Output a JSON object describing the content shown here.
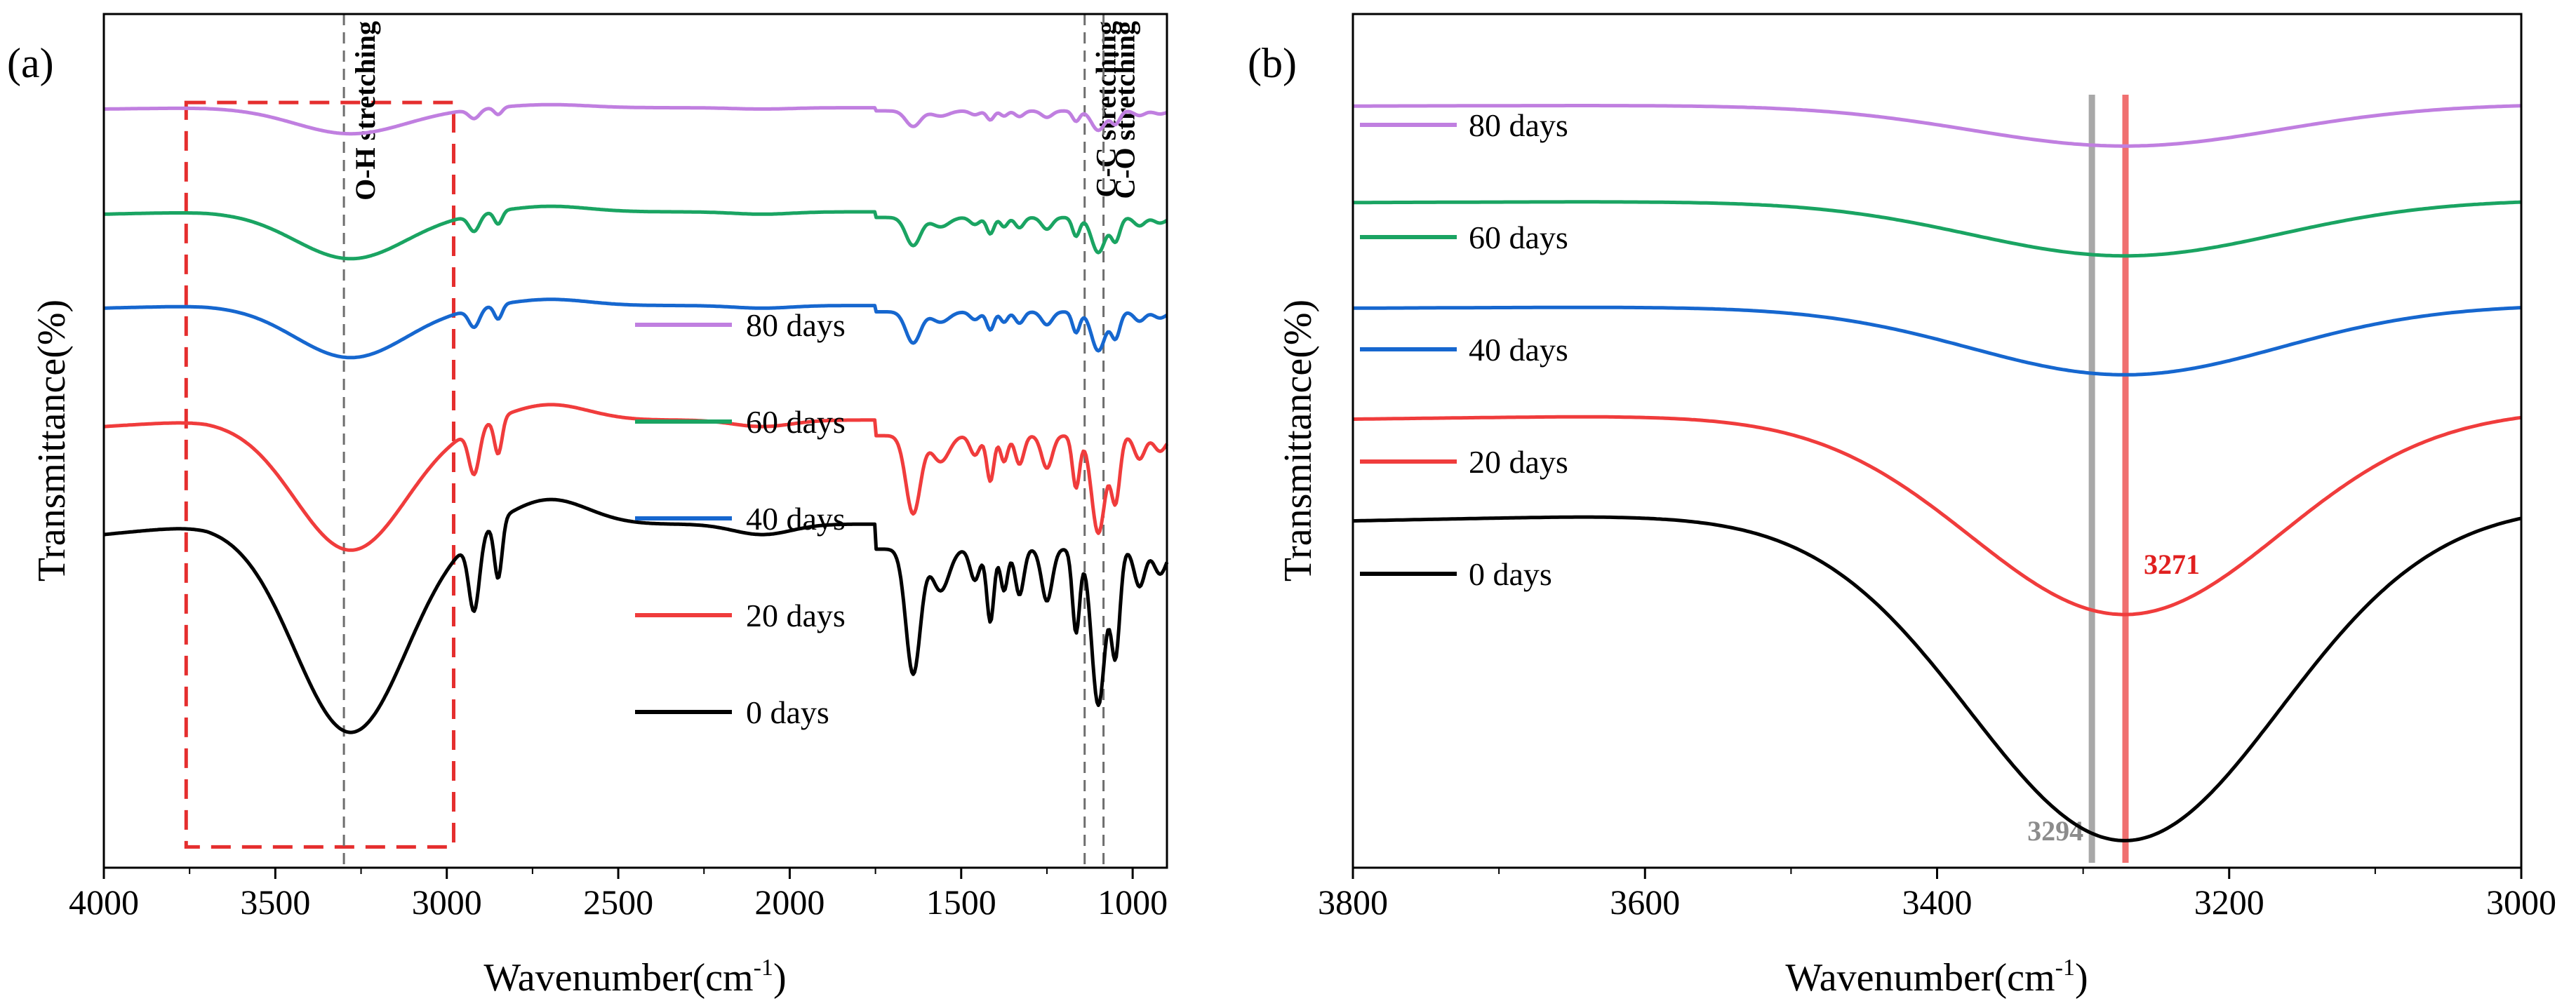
{
  "chart_data": [
    {
      "panel": "(a)",
      "type": "line",
      "xlabel": "Wavenumber(cm",
      "xlabel_sup": "-1",
      "xlabel_tail": ")",
      "ylabel": "Transmittance(%)",
      "xlim": [
        4000,
        900
      ],
      "xticks": [
        4000,
        3500,
        3000,
        2500,
        2000,
        1500,
        1000
      ],
      "xtick_labels": [
        "4000",
        "3500",
        "3000",
        "2500",
        "2000",
        "1500",
        "1000"
      ],
      "legend_placement": "center-right",
      "annotations": [
        {
          "label": "O-H stretching",
          "x": 3300
        },
        {
          "label": "C-C stretching",
          "x": 1140
        },
        {
          "label": "C-O stretching",
          "x": 1085
        }
      ],
      "highlight_box": {
        "x_from": 3760,
        "x_to": 2980,
        "style": "red dashed rectangle"
      },
      "series": [
        {
          "name": "80 days",
          "color": "#c07fe0",
          "offset": 4.0,
          "scale": 0.25
        },
        {
          "name": "60 days",
          "color": "#1aa462",
          "offset": 3.0,
          "scale": 0.45
        },
        {
          "name": "40 days",
          "color": "#1667cf",
          "offset": 2.1,
          "scale": 0.5
        },
        {
          "name": "20 days",
          "color": "#f03c3c",
          "offset": 1.0,
          "scale": 1.25
        },
        {
          "name": "0 days",
          "color": "#000000",
          "offset": 0.0,
          "scale": 2.0
        }
      ]
    },
    {
      "panel": "(b)",
      "type": "line",
      "xlabel": "Wavenumber(cm",
      "xlabel_sup": "-1",
      "xlabel_tail": ")",
      "ylabel": "Transmittance(%)",
      "xlim": [
        3800,
        3000
      ],
      "xticks": [
        3800,
        3600,
        3400,
        3200,
        3000
      ],
      "xtick_labels": [
        "3800",
        "3600",
        "3400",
        "3200",
        "3000"
      ],
      "legend_placement": "left",
      "reference_lines": [
        {
          "x": 3294,
          "label": "3294",
          "color": "#a8a8a8"
        },
        {
          "x": 3271,
          "label": "3271",
          "color": "#f07070"
        }
      ],
      "series": [
        {
          "name": "80 days",
          "color": "#c07fe0",
          "offset": 9.0,
          "scale": 0.45,
          "right_end": -0.2
        },
        {
          "name": "60 days",
          "color": "#1aa462",
          "offset": 7.95,
          "scale": 0.6,
          "right_end": -0.45
        },
        {
          "name": "40 days",
          "color": "#1667cf",
          "offset": 6.8,
          "scale": 0.75,
          "right_end": -0.3
        },
        {
          "name": "20 days",
          "color": "#f03c3c",
          "offset": 5.6,
          "scale": 2.2,
          "right_end": -0.8
        },
        {
          "name": "0 days",
          "color": "#000000",
          "offset": 4.5,
          "scale": 3.6,
          "right_end": -0.9
        }
      ]
    }
  ],
  "panel_a": {
    "label": "(a)",
    "ylabel": "Transmittance(%)",
    "xlabel": "Wavenumber(cm",
    "xlabel_sup": "-1",
    "xlabel_tail": ")",
    "annotations": [
      "O-H stretching",
      "C-C stretching",
      "C-O stretching"
    ],
    "legend": [
      "80 days",
      "60 days",
      "40 days",
      "20 days",
      "0 days"
    ]
  },
  "panel_b": {
    "label": "(b)",
    "ylabel": "Transmittance(%)",
    "xlabel": "Wavenumber(cm",
    "xlabel_sup": "-1",
    "xlabel_tail": ")",
    "peak_labels": [
      "3294",
      "3271"
    ],
    "legend": [
      "80 days",
      "60 days",
      "40 days",
      "20 days",
      "0 days"
    ]
  }
}
